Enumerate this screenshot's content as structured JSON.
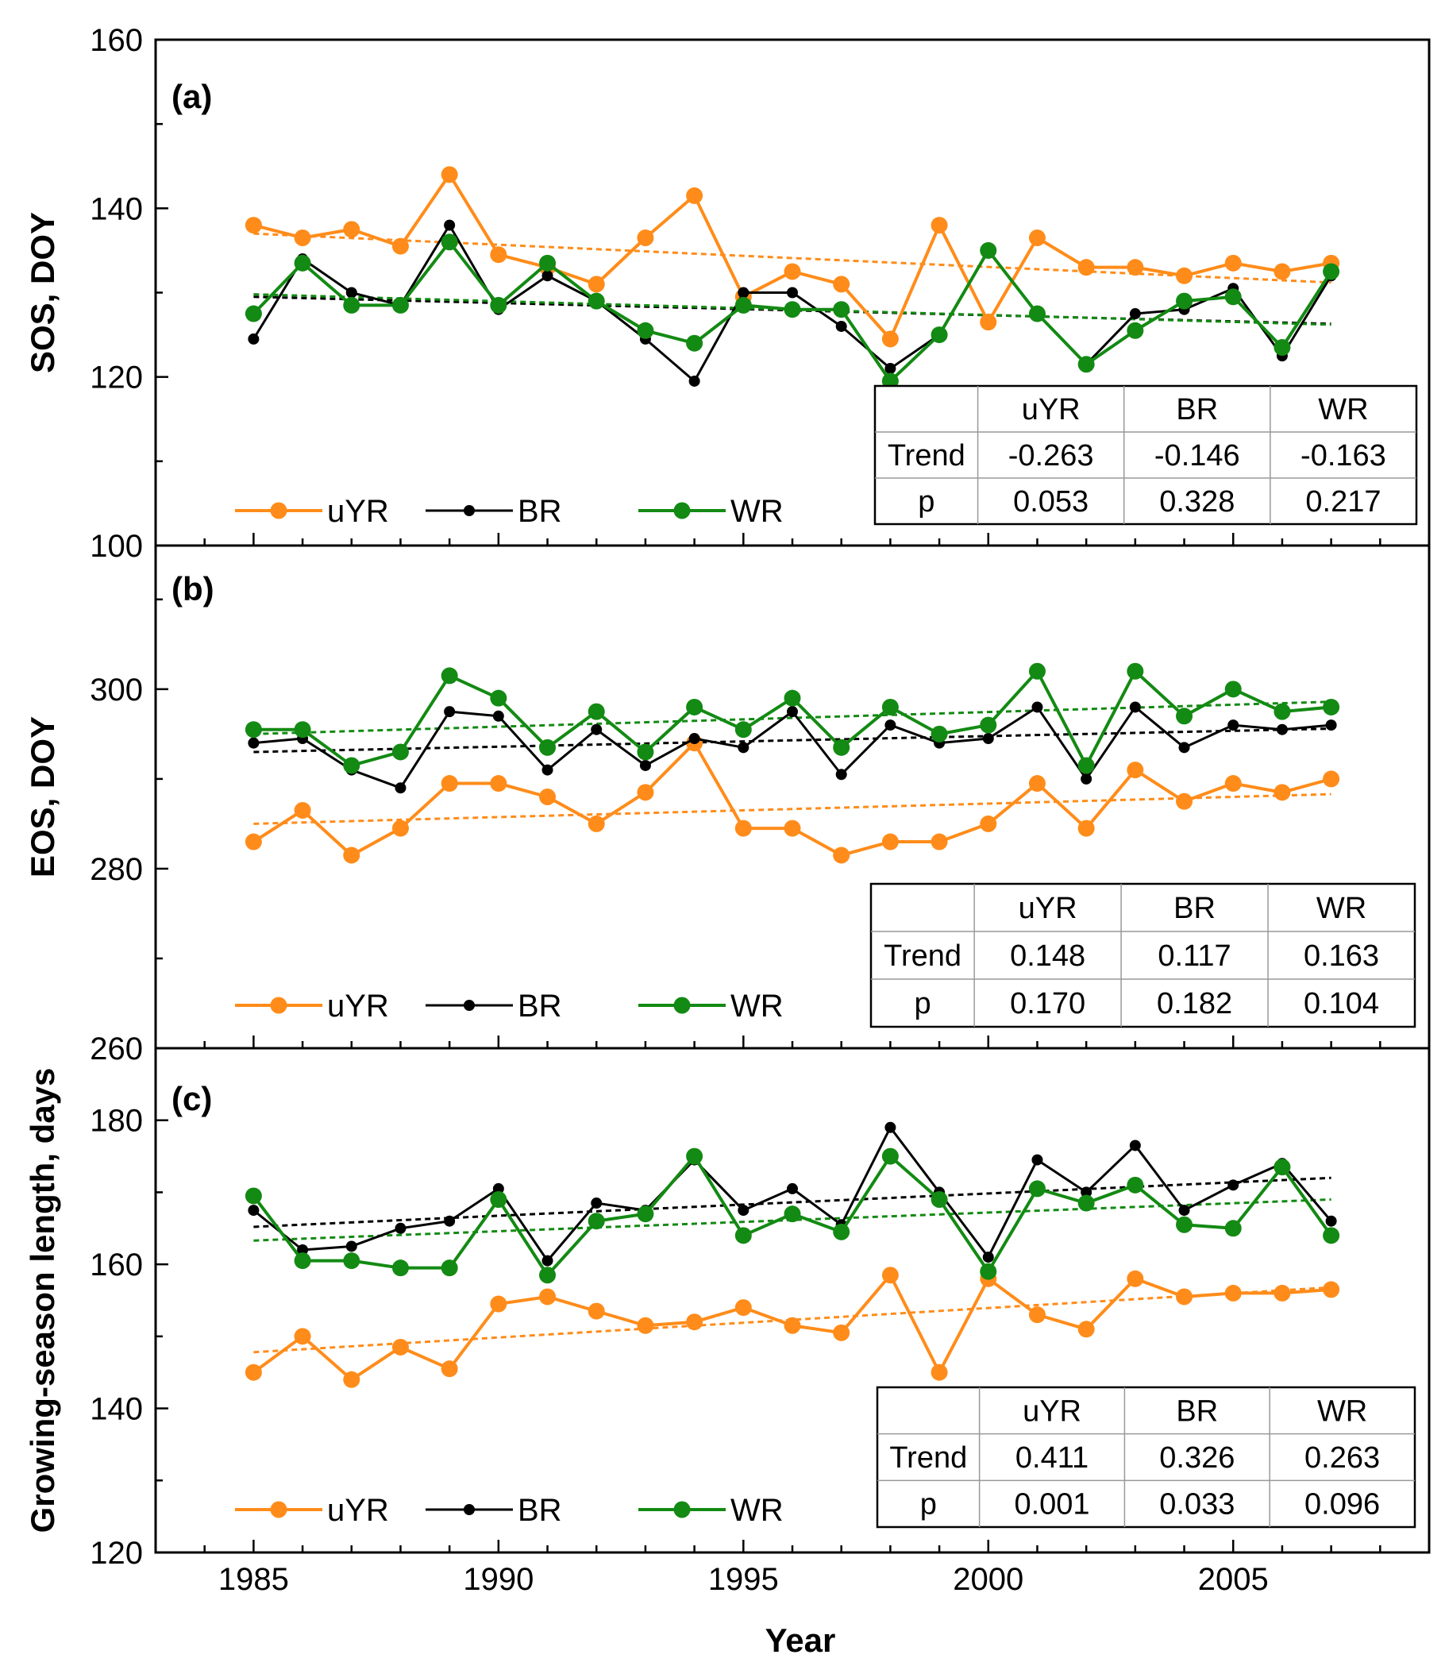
{
  "figure": {
    "xlabel": "Year",
    "xticks": [
      1985,
      1990,
      1995,
      2000,
      2005
    ],
    "xlim": [
      1983,
      2009
    ]
  },
  "colors": {
    "uYR": "#ff8c1a",
    "BR": "#000000",
    "WR": "#138a13",
    "uYR_trend": "#ff8c1a",
    "BR_trend": "#000000",
    "WR_trend": "#138a13"
  },
  "chart_data": [
    {
      "type": "line",
      "panel_label": "(a)",
      "ylabel": "SOS, DOY",
      "ylim": [
        100,
        160
      ],
      "yticks": [
        100,
        120,
        140,
        160
      ],
      "x": [
        1985,
        1986,
        1987,
        1988,
        1989,
        1990,
        1991,
        1992,
        1993,
        1994,
        1995,
        1996,
        1997,
        1998,
        1999,
        2000,
        2001,
        2002,
        2003,
        2004,
        2005,
        2006,
        2007
      ],
      "series": [
        {
          "name": "uYR",
          "values": [
            138,
            136.5,
            137.5,
            135.5,
            144,
            134.5,
            133,
            131,
            136.5,
            141.5,
            129.5,
            132.5,
            131,
            124.5,
            138,
            126.5,
            136.5,
            133,
            133,
            132,
            133.5,
            132.5,
            133.5
          ]
        },
        {
          "name": "BR",
          "values": [
            124.5,
            134,
            130,
            128.5,
            138,
            128,
            132,
            129,
            124.5,
            119.5,
            130,
            130,
            126,
            121,
            125,
            135,
            127.5,
            121.5,
            127.5,
            128,
            130.5,
            122.5,
            132
          ]
        },
        {
          "name": "WR",
          "values": [
            127.5,
            133.5,
            128.5,
            128.5,
            136,
            128.5,
            133.5,
            129,
            125.5,
            124,
            128.5,
            128,
            128,
            119.5,
            125,
            135,
            127.5,
            121.5,
            125.5,
            129,
            129.5,
            123.5,
            132.5
          ]
        }
      ],
      "trendlines": [
        {
          "name": "uYR",
          "start": 137,
          "end": 131.2
        },
        {
          "name": "BR",
          "start": 129.5,
          "end": 126.3
        },
        {
          "name": "WR",
          "start": 129.8,
          "end": 126.2
        }
      ],
      "legend": [
        "uYR",
        "BR",
        "WR"
      ],
      "table": {
        "columns": [
          "",
          "uYR",
          "BR",
          "WR"
        ],
        "rows": [
          [
            "Trend",
            "-0.263",
            "-0.146",
            "-0.163"
          ],
          [
            "p",
            "0.053",
            "0.328",
            "0.217"
          ]
        ]
      }
    },
    {
      "type": "line",
      "panel_label": "(b)",
      "ylabel": "EOS, DOY",
      "ylim": [
        260,
        316
      ],
      "yticks": [
        260,
        280,
        300
      ],
      "x": [
        1985,
        1986,
        1987,
        1988,
        1989,
        1990,
        1991,
        1992,
        1993,
        1994,
        1995,
        1996,
        1997,
        1998,
        1999,
        2000,
        2001,
        2002,
        2003,
        2004,
        2005,
        2006,
        2007
      ],
      "series": [
        {
          "name": "uYR",
          "values": [
            283,
            286.5,
            281.5,
            284.5,
            289.5,
            289.5,
            288,
            285,
            288.5,
            294,
            284.5,
            284.5,
            281.5,
            283,
            283,
            285,
            289.5,
            284.5,
            291,
            287.5,
            289.5,
            288.5,
            290
          ]
        },
        {
          "name": "BR",
          "values": [
            294,
            294.5,
            291,
            289,
            297.5,
            297,
            291,
            295.5,
            291.5,
            294.5,
            293.5,
            297.5,
            290.5,
            296,
            294,
            294.5,
            298,
            290,
            298,
            293.5,
            296,
            295.5,
            296
          ]
        },
        {
          "name": "WR",
          "values": [
            295.5,
            295.5,
            291.5,
            293,
            301.5,
            299,
            293.5,
            297.5,
            293,
            298,
            295.5,
            299,
            293.5,
            298,
            295,
            296,
            302,
            291.5,
            302,
            297,
            300,
            297.5,
            298
          ]
        }
      ],
      "trendlines": [
        {
          "name": "uYR",
          "start": 285,
          "end": 288.3
        },
        {
          "name": "BR",
          "start": 293,
          "end": 295.6
        },
        {
          "name": "WR",
          "start": 295,
          "end": 298.6
        }
      ],
      "legend": [
        "uYR",
        "BR",
        "WR"
      ],
      "table": {
        "columns": [
          "",
          "uYR",
          "BR",
          "WR"
        ],
        "rows": [
          [
            "Trend",
            "0.148",
            "0.117",
            "0.163"
          ],
          [
            "p",
            "0.170",
            "0.182",
            "0.104"
          ]
        ]
      }
    },
    {
      "type": "line",
      "panel_label": "(c)",
      "ylabel": "Growing-season length, days",
      "ylim": [
        120,
        190
      ],
      "yticks": [
        120,
        140,
        160,
        180
      ],
      "x": [
        1985,
        1986,
        1987,
        1988,
        1989,
        1990,
        1991,
        1992,
        1993,
        1994,
        1995,
        1996,
        1997,
        1998,
        1999,
        2000,
        2001,
        2002,
        2003,
        2004,
        2005,
        2006,
        2007
      ],
      "series": [
        {
          "name": "uYR",
          "values": [
            145,
            150,
            144,
            148.5,
            145.5,
            154.5,
            155.5,
            153.5,
            151.5,
            152,
            154,
            151.5,
            150.5,
            158.5,
            145,
            158,
            153,
            151,
            158,
            155.5,
            156,
            156,
            156.5
          ]
        },
        {
          "name": "BR",
          "values": [
            167.5,
            162,
            162.5,
            165,
            166,
            170.5,
            160.5,
            168.5,
            167.5,
            174.5,
            167.5,
            170.5,
            165.5,
            179,
            170,
            161,
            174.5,
            170,
            176.5,
            167.5,
            171,
            174,
            166
          ]
        },
        {
          "name": "WR",
          "values": [
            169.5,
            160.5,
            160.5,
            159.5,
            159.5,
            169,
            158.5,
            166,
            167,
            175,
            164,
            167,
            164.5,
            175,
            169,
            159,
            170.5,
            168.5,
            171,
            165.5,
            165,
            173.5,
            164
          ]
        }
      ],
      "trendlines": [
        {
          "name": "uYR",
          "start": 147.8,
          "end": 156.8
        },
        {
          "name": "BR",
          "start": 165.2,
          "end": 172
        },
        {
          "name": "WR",
          "start": 163.3,
          "end": 169
        }
      ],
      "legend": [
        "uYR",
        "BR",
        "WR"
      ],
      "table": {
        "columns": [
          "",
          "uYR",
          "BR",
          "WR"
        ],
        "rows": [
          [
            "Trend",
            "0.411",
            "0.326",
            "0.263"
          ],
          [
            "p",
            "0.001",
            "0.033",
            "0.096"
          ]
        ]
      }
    }
  ]
}
